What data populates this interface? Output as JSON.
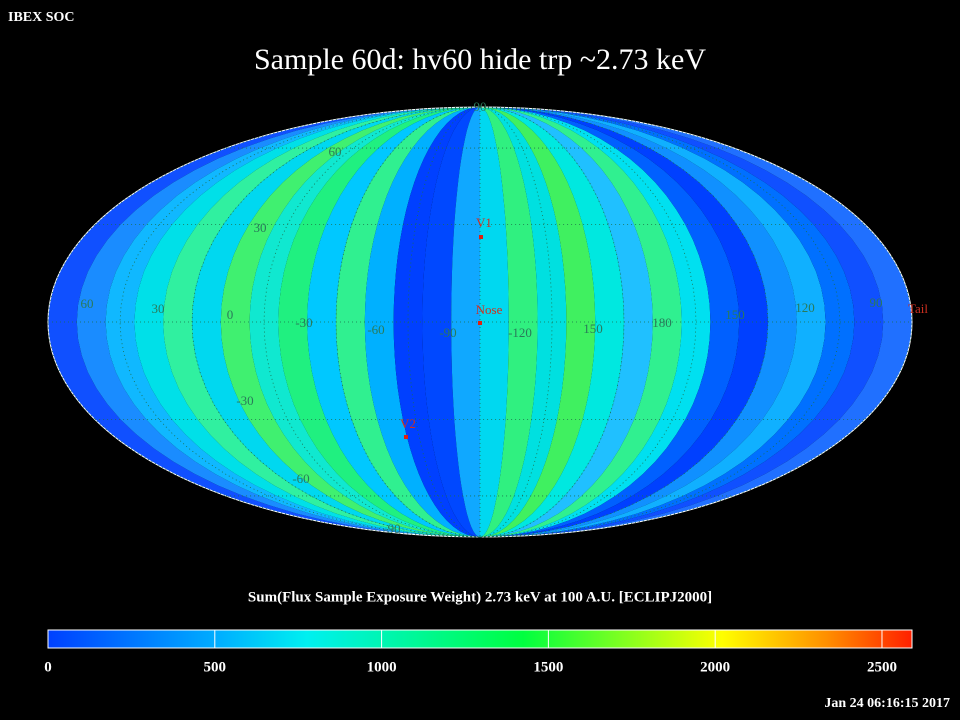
{
  "header": {
    "source": "IBEX SOC",
    "title": "Sample 60d: hv60 hide trp ~2.73 keV",
    "timestamp": "Jan 24 06:16:15 2017"
  },
  "map": {
    "grid_labels": [
      "60",
      "30",
      "0",
      "-30",
      "-60",
      "-90",
      "-120",
      "150",
      "180",
      "150",
      "120",
      "90",
      "90",
      "60",
      "30",
      "-30",
      "-60",
      "-90"
    ],
    "markers": [
      "V1",
      "Nose",
      "V2",
      "Tail"
    ]
  },
  "colorbar": {
    "label": "Sum(Flux Sample Exposure Weight)  2.73 keV at 100 A.U. [ECLIPJ2000]",
    "range": [
      0,
      2590
    ],
    "ticks": [
      0,
      500,
      1000,
      1500,
      2000,
      2500
    ]
  }
}
